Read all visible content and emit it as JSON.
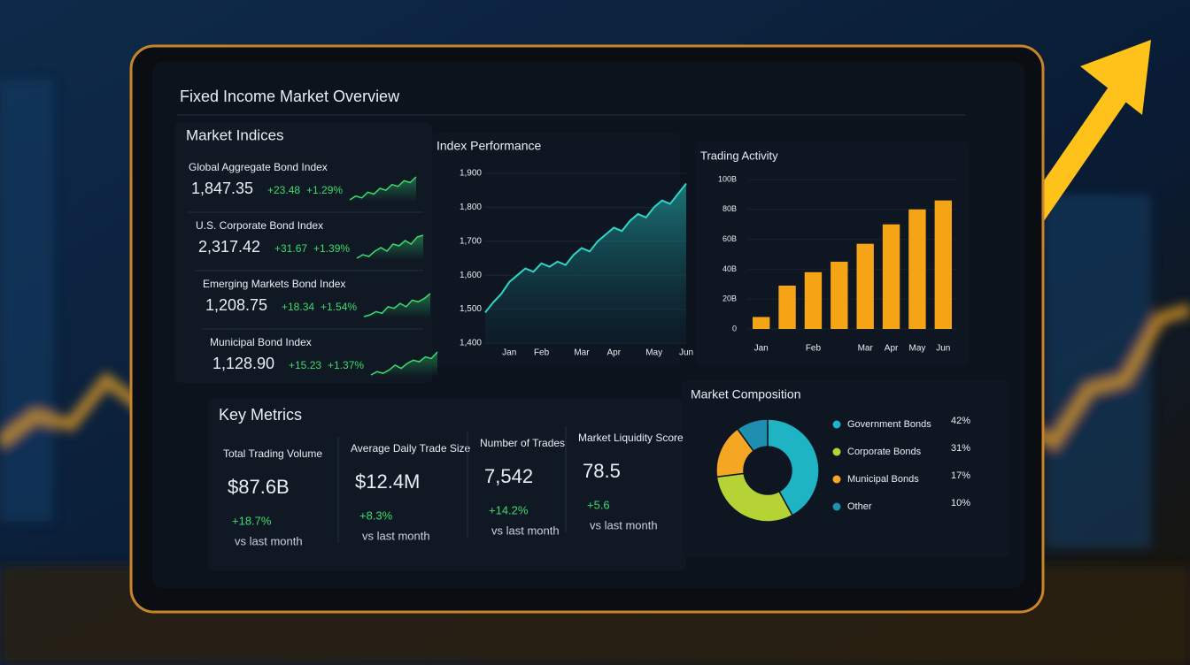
{
  "title": "Fixed Income Market Overview",
  "indices_heading": "Market Indices",
  "indices": [
    {
      "name": "Global Aggregate Bond Index",
      "value": "1,847.35",
      "change": "+23.48",
      "pct": "+1.29%",
      "spark": [
        3,
        4,
        3.5,
        5,
        4.5,
        6,
        5.5,
        7,
        6.5,
        8,
        7.5,
        9
      ]
    },
    {
      "name": "U.S. Corporate Bond Index",
      "value": "2,317.42",
      "change": "+31.67",
      "pct": "+1.39%",
      "spark": [
        2,
        3,
        2.5,
        4,
        5,
        4,
        6,
        5.5,
        7,
        6,
        8,
        8.5
      ]
    },
    {
      "name": "Emerging Markets Bond Index",
      "value": "1,208.75",
      "change": "+18.34",
      "pct": "+1.54%",
      "spark": [
        2,
        2.5,
        3.5,
        3,
        5,
        4.5,
        6,
        5,
        7,
        6.5,
        7.5,
        9
      ]
    },
    {
      "name": "Municipal Bond Index",
      "value": "1,128.90",
      "change": "+15.23",
      "pct": "+1.37%",
      "spark": [
        2,
        3,
        2.5,
        3.5,
        5,
        4,
        5.5,
        6.5,
        6,
        7.5,
        7,
        9
      ]
    }
  ],
  "metrics_heading": "Key Metrics",
  "metrics": [
    {
      "name": "Total Trading Volume",
      "value": "$87.6B",
      "change": "+18.7%",
      "note": "vs last month"
    },
    {
      "name": "Average Daily Trade Size",
      "value": "$12.4M",
      "change": "+8.3%",
      "note": "vs last month"
    },
    {
      "name": "Number of Trades",
      "value": "7,542",
      "change": "+14.2%",
      "note": "vs last month"
    },
    {
      "name": "Market Liquidity Score",
      "value": "78.5",
      "change": "+5.6",
      "note": "vs last month"
    }
  ],
  "chart_data": [
    {
      "type": "line",
      "title": "Index Performance",
      "categories": [
        null,
        null,
        null,
        "Jan",
        null,
        null,
        null,
        "Feb",
        null,
        null,
        null,
        null,
        "Mar",
        null,
        null,
        null,
        "Apr",
        null,
        null,
        null,
        null,
        "May",
        null,
        null,
        null,
        "Jun"
      ],
      "values": [
        1490,
        1520,
        1545,
        1580,
        1600,
        1620,
        1610,
        1635,
        1625,
        1640,
        1630,
        1660,
        1680,
        1670,
        1700,
        1720,
        1740,
        1730,
        1760,
        1780,
        1770,
        1800,
        1820,
        1810,
        1840,
        1870
      ],
      "color": "#2fd6c8",
      "ylim": [
        1400,
        1900
      ],
      "yticks": [
        {
          "value": 1400,
          "label": "1,400"
        },
        {
          "value": 1500,
          "label": "1,500"
        },
        {
          "value": 1600,
          "label": "1,600"
        },
        {
          "value": 1700,
          "label": "1,700"
        },
        {
          "value": 1800,
          "label": "1,800"
        },
        {
          "value": 1900,
          "label": "1,900"
        }
      ]
    },
    {
      "type": "bar",
      "title": "Trading Activity",
      "categories": [
        "Jan",
        null,
        "Feb",
        null,
        "Mar",
        "Apr",
        "May",
        "Jun"
      ],
      "values": [
        8,
        29,
        38,
        45,
        57,
        70,
        80,
        86
      ],
      "color": "#f5a416",
      "ylim": [
        0,
        100
      ],
      "yticks": [
        0,
        {
          "value": 20,
          "label": "20B"
        },
        {
          "value": 40,
          "label": "40B"
        },
        {
          "value": 60,
          "label": "60B"
        },
        {
          "value": 80,
          "label": "80B"
        },
        {
          "value": 100,
          "label": "100B"
        }
      ]
    },
    {
      "type": "pie",
      "title": "Market Composition",
      "categories": [
        "Government Bonds",
        "Corporate Bonds",
        "Municipal Bonds",
        "Other"
      ],
      "values": [
        42,
        31,
        17,
        10
      ],
      "value_labels": [
        "42%",
        "31%",
        "17%",
        "10%"
      ],
      "colors": [
        "#1fb4c4",
        "#b5d334",
        "#f5a623",
        "#1e8fb0"
      ]
    }
  ]
}
